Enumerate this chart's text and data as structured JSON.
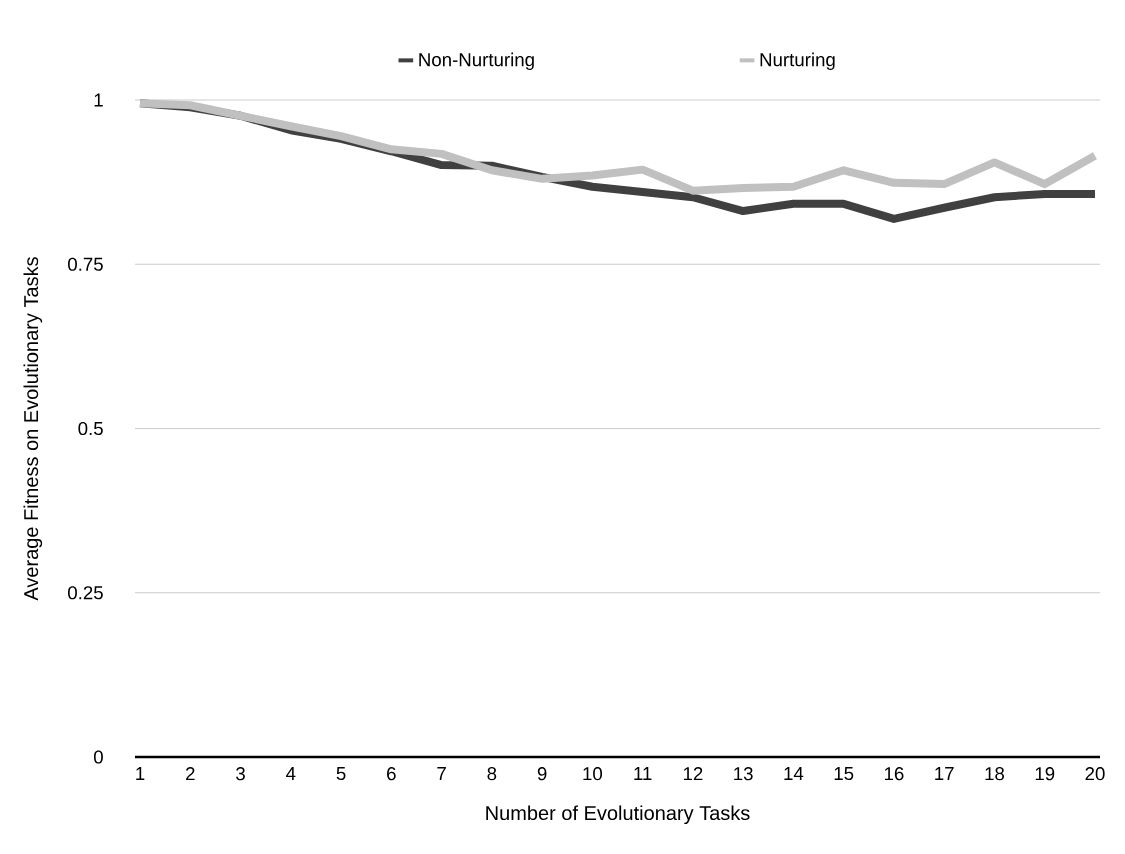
{
  "chart_data": {
    "type": "line",
    "xlabel": "Number of Evolutionary Tasks",
    "ylabel": "Average Fitness on Evolutionary Tasks",
    "categories": [
      "1",
      "2",
      "3",
      "4",
      "5",
      "6",
      "7",
      "8",
      "9",
      "10",
      "11",
      "12",
      "13",
      "14",
      "15",
      "16",
      "17",
      "18",
      "19",
      "20"
    ],
    "series": [
      {
        "name": "Non-Nurturing",
        "color": "#404040",
        "values": [
          0.995,
          0.989,
          0.976,
          0.954,
          0.941,
          0.922,
          0.901,
          0.9,
          0.883,
          0.868,
          0.86,
          0.852,
          0.831,
          0.842,
          0.842,
          0.819,
          0.836,
          0.852,
          0.857,
          0.857
        ]
      },
      {
        "name": "Nurturing",
        "color": "#c0c0c0",
        "values": [
          0.995,
          0.992,
          0.976,
          0.96,
          0.945,
          0.925,
          0.918,
          0.893,
          0.88,
          0.885,
          0.894,
          0.862,
          0.866,
          0.868,
          0.893,
          0.874,
          0.872,
          0.905,
          0.872,
          0.915
        ]
      }
    ],
    "ylim": [
      0,
      1
    ],
    "yticks": [
      0,
      0.25,
      0.5,
      0.75,
      1
    ],
    "grid": "y",
    "legend": "top",
    "marker": "none",
    "line_style": "solid"
  }
}
